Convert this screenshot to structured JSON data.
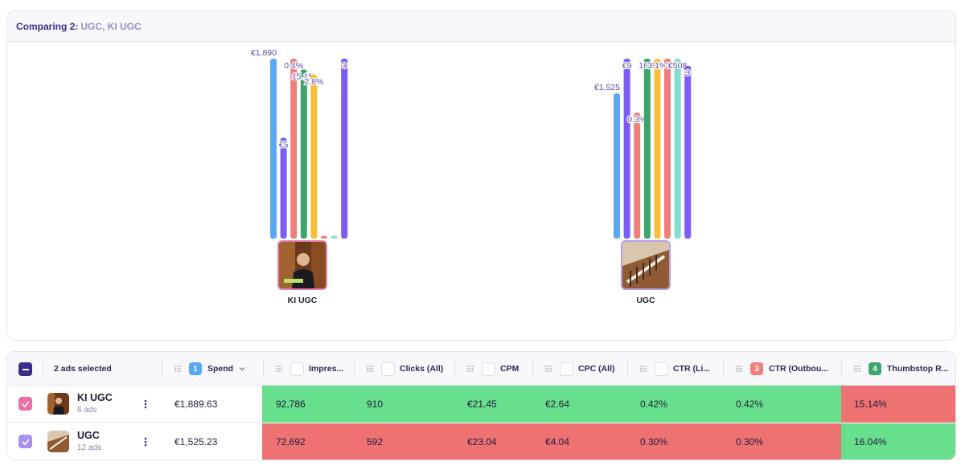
{
  "compare": {
    "label": "Comparing 2:",
    "names": "UGC, KI UGC"
  },
  "chart_data": {
    "type": "bar",
    "categories": [
      "KI UGC",
      "UGC"
    ],
    "series": [
      {
        "name": "Spend",
        "color": "#5aa7f3",
        "values": [
          1889.63,
          1525.23
        ],
        "labels": [
          "€1,890",
          "€1,525"
        ]
      },
      {
        "name": "Purple 1",
        "color": "#7c5cf5",
        "values": [
          0.56,
          1.0
        ],
        "labels": [
          "€5",
          "€9"
        ]
      },
      {
        "name": "Coral 1",
        "color": "#f07f7b",
        "values": [
          1.0,
          0.7
        ],
        "labels": [
          "0.4%",
          "0.3%"
        ]
      },
      {
        "name": "Green",
        "color": "#3aa66b",
        "values": [
          0.94,
          1.0
        ],
        "labels": [
          "15.1%",
          "16%"
        ]
      },
      {
        "name": "Yellow",
        "color": "#f9be3c",
        "values": [
          0.91,
          1.0
        ],
        "labels": [
          "2.8%",
          "3.1%"
        ]
      },
      {
        "name": "Coral 2",
        "color": "#f07f7b",
        "values": [
          0.015,
          1.0
        ],
        "labels": [
          "",
          "3"
        ]
      },
      {
        "name": "Teal",
        "color": "#7fe0cb",
        "values": [
          0.015,
          1.0
        ],
        "labels": [
          "",
          "€508"
        ]
      },
      {
        "name": "Purple 2",
        "color": "#7c5cf5",
        "values": [
          1.0,
          0.96
        ],
        "labels": [
          "3",
          "3"
        ]
      }
    ]
  },
  "ads": [
    {
      "name": "KI UGC",
      "sub": "6 ads",
      "spend": "€1,889.63",
      "impressions": "92,786",
      "clicks": "910",
      "cpm": "€21.45",
      "cpc": "€2.64",
      "ctr_link": "0.42%",
      "ctr_out": "0.42%",
      "thumbstop": "15.14%"
    },
    {
      "name": "UGC",
      "sub": "12 ads",
      "spend": "€1,525.23",
      "impressions": "72,692",
      "clicks": "592",
      "cpm": "€23.04",
      "cpc": "€4.04",
      "ctr_link": "0.30%",
      "ctr_out": "0.30%",
      "thumbstop": "16.04%"
    }
  ],
  "table": {
    "selected_label": "2 ads selected",
    "columns": {
      "spend": "Spend",
      "impressions": "Impres...",
      "clicks": "Clicks (All)",
      "cpm": "CPM",
      "cpc": "CPC (All)",
      "ctr_link": "CTR (Li...",
      "ctr_out": "CTR (Outbou...",
      "thumbstop": "Thumbstop R..."
    },
    "badges": {
      "spend": "1",
      "ctr_out": "3",
      "thumbstop": "4"
    },
    "colors": {
      "good": "#67df8c",
      "bad": "#ef7272",
      "badge_blue": "#5aa7f3",
      "badge_red": "#f07f7b",
      "badge_green": "#3aa66b"
    }
  }
}
